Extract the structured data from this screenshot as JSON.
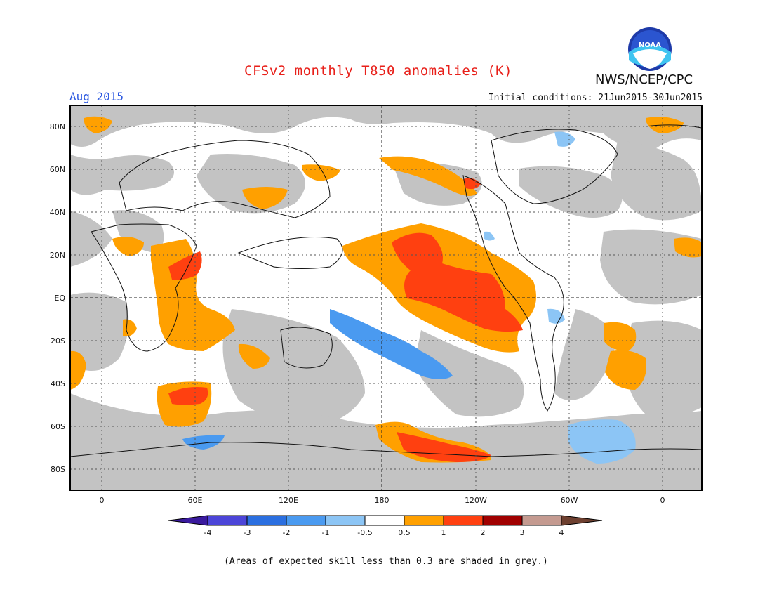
{
  "header": {
    "title": "CFSv2 monthly T850 anomalies (K)",
    "month": "Aug 2015",
    "org": "NWS/NCEP/CPC",
    "initial_conditions": "Initial conditions: 21Jun2015-30Jun2015",
    "logo_text": "NOAA"
  },
  "map": {
    "lat_labels": [
      "80N",
      "60N",
      "40N",
      "20N",
      "EQ",
      "20S",
      "40S",
      "60S",
      "80S"
    ],
    "lon_labels": [
      "0",
      "60E",
      "120E",
      "180",
      "120W",
      "60W",
      "0"
    ],
    "grey_meaning": "expected skill < 0.3"
  },
  "legend": {
    "ticks": [
      "-4",
      "-3",
      "-2",
      "-1",
      "-0.5",
      "0.5",
      "1",
      "2",
      "3",
      "4"
    ],
    "colors": [
      "#3a1a9e",
      "#4c45d8",
      "#2b6fe0",
      "#4a9af0",
      "#8cc5f5",
      "#ffffff",
      "#ffa000",
      "#ff4010",
      "#a00000",
      "#c49a90",
      "#6e4030"
    ]
  },
  "footnote": "(Areas of expected skill less than 0.3 are shaded in grey.)",
  "colors": {
    "title": "#e8201a",
    "month": "#2a57e0",
    "grey": "#c3c3c3"
  }
}
